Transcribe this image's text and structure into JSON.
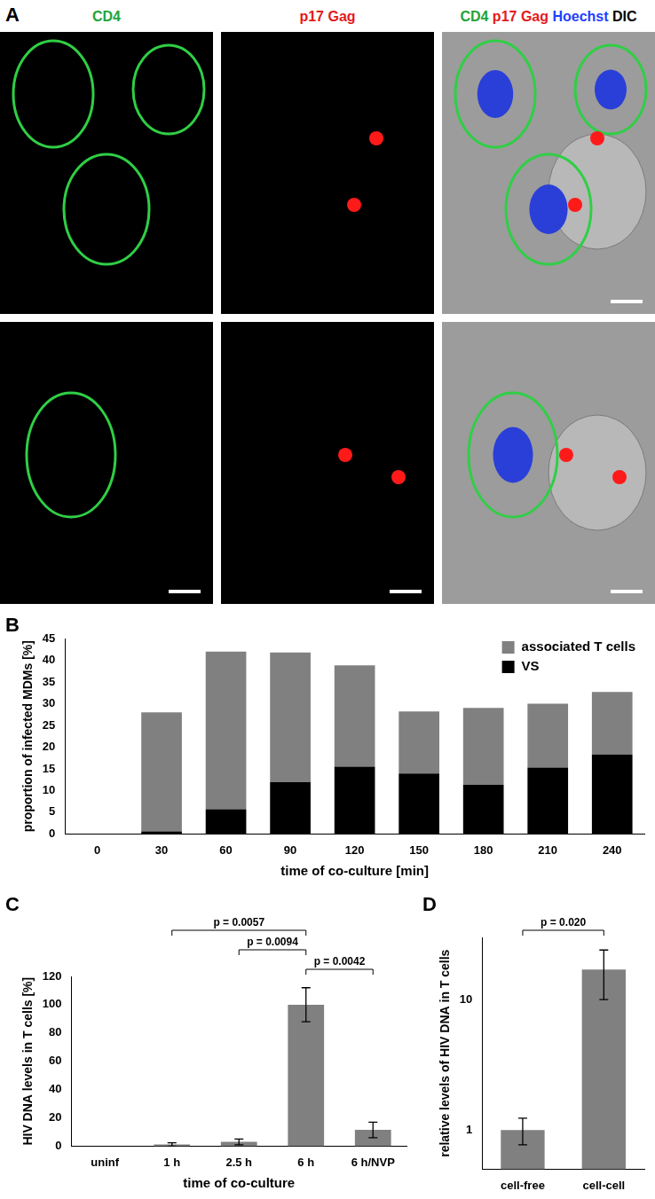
{
  "figure_panel": {
    "label": "A",
    "type": "micrograph",
    "headers": [
      [
        {
          "text": "CD4",
          "color": "#22a33a"
        }
      ],
      [
        {
          "text": "p17 Gag",
          "color": "#e31a1c"
        }
      ],
      [
        {
          "text": "CD4",
          "color": "#22a33a"
        },
        {
          "text": "p17 Gag",
          "color": "#e31a1c"
        },
        {
          "text": "Hoechst",
          "color": "#1f3fff"
        },
        {
          "text": "DIC",
          "color": "#000000"
        }
      ]
    ]
  },
  "chart_data": [
    {
      "panel": "B",
      "type": "bar",
      "stacked": true,
      "categories": [
        "0",
        "30",
        "60",
        "90",
        "120",
        "150",
        "180",
        "210",
        "240"
      ],
      "series": [
        {
          "name": "VS",
          "color": "#000000",
          "values": [
            0,
            0.6,
            5.7,
            11.9,
            15.5,
            13.9,
            11.3,
            15.3,
            18.3
          ]
        },
        {
          "name": "associated T cells",
          "color": "#808080",
          "values": [
            0,
            27.4,
            36.3,
            29.9,
            23.3,
            14.3,
            17.7,
            14.7,
            14.4
          ]
        }
      ],
      "x_label": "time of co-culture [min]",
      "y_label": "proportion of infected MDMs [%]",
      "ylim": [
        0,
        45
      ],
      "yticks": [
        0,
        5,
        10,
        15,
        20,
        25,
        30,
        35,
        40,
        45
      ],
      "grid": false,
      "legend": "upper right"
    },
    {
      "panel": "C",
      "type": "bar",
      "categories": [
        "uninf",
        "1 h",
        "2.5 h",
        "6 h",
        "6 h/NVP"
      ],
      "values": [
        0,
        1.2,
        3,
        100,
        11.5
      ],
      "errors": [
        0,
        1.2,
        2,
        12,
        5.5
      ],
      "color": "#808080",
      "x_label": "time of co-culture",
      "y_label": "HIV DNA levels in T cells [%]",
      "ylim": [
        0,
        120
      ],
      "yticks": [
        0,
        20,
        40,
        60,
        80,
        100,
        120
      ],
      "grid": false,
      "annotations": [
        {
          "text": "p = 0.0057",
          "from": "1 h",
          "to": "6 h"
        },
        {
          "text": "p = 0.0094",
          "from": "2.5 h",
          "to": "6 h"
        },
        {
          "text": "p = 0.0042",
          "from": "6 h",
          "to": "6 h/NVP"
        }
      ]
    },
    {
      "panel": "D",
      "type": "bar",
      "log": "y",
      "categories": [
        "cell-free",
        "cell-cell"
      ],
      "values": [
        1,
        17
      ],
      "errors": [
        0.23,
        7
      ],
      "color": "#808080",
      "y_label": "relative levels of HIV DNA in T cells",
      "ylim": [
        0.5,
        30
      ],
      "yticks": [
        1,
        10
      ],
      "grid": false,
      "annotations": [
        {
          "text": "p = 0.020",
          "from": "cell-free",
          "to": "cell-cell"
        }
      ]
    }
  ]
}
